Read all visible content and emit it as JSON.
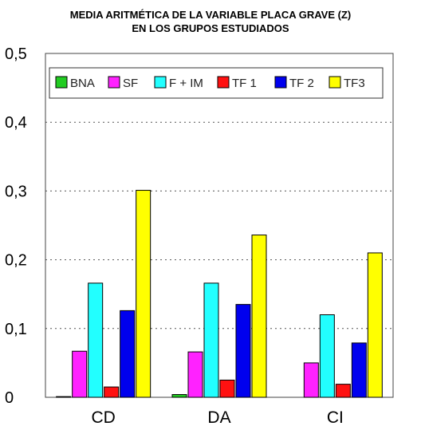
{
  "chart_data": {
    "type": "bar",
    "title_line1": "MEDIA ARITMÉTICA DE LA VARIABLE PLACA GRAVE (Z)",
    "title_line2": "EN LOS GRUPOS ESTUDIADOS",
    "categories": [
      "CD",
      "DA",
      "CI"
    ],
    "ylim": [
      0,
      0.5
    ],
    "yticks": [
      "0",
      "0,1",
      "0,2",
      "0,3",
      "0,4",
      "0,5"
    ],
    "grid": true,
    "legend_position": "top",
    "series": [
      {
        "name": "BNA",
        "color": "#22cc22",
        "values": [
          0.001,
          0.004,
          0.0
        ]
      },
      {
        "name": "SF",
        "color": "#ff22ff",
        "values": [
          0.067,
          0.066,
          0.05
        ]
      },
      {
        "name": "F + IM",
        "color": "#22ffff",
        "values": [
          0.166,
          0.166,
          0.12
        ]
      },
      {
        "name": "TF 1",
        "color": "#ff1111",
        "values": [
          0.015,
          0.025,
          0.019
        ]
      },
      {
        "name": "TF 2",
        "color": "#0000ee",
        "values": [
          0.126,
          0.135,
          0.079
        ]
      },
      {
        "name": "TF3",
        "color": "#ffff00",
        "values": [
          0.301,
          0.236,
          0.21
        ]
      }
    ]
  }
}
